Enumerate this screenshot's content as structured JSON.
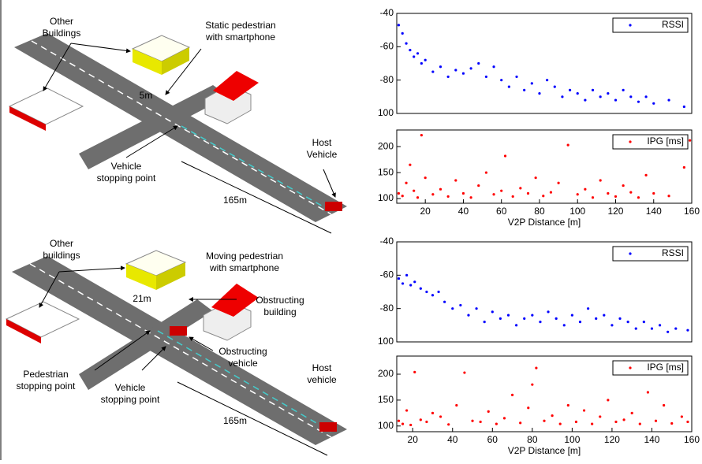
{
  "chart_data": [
    {
      "type": "scatter",
      "xlim": [
        5,
        160
      ],
      "ylim": [
        -100,
        -40
      ],
      "yticks": [
        -40,
        -60,
        -80,
        {
          "value": -100,
          "label": "100"
        }
      ],
      "legend": "top-right",
      "x": [
        6,
        8,
        10,
        12,
        14,
        16,
        18,
        20,
        24,
        28,
        32,
        36,
        40,
        44,
        48,
        52,
        56,
        60,
        64,
        68,
        72,
        76,
        80,
        84,
        88,
        92,
        96,
        100,
        104,
        108,
        112,
        116,
        120,
        124,
        128,
        132,
        136,
        140,
        148,
        156
      ],
      "series": [
        {
          "name": "RSSI",
          "color": "#0000ff",
          "values": [
            -47,
            -52,
            -58,
            -62,
            -66,
            -64,
            -70,
            -68,
            -75,
            -72,
            -78,
            -74,
            -76,
            -73,
            -70,
            -78,
            -72,
            -80,
            -84,
            -78,
            -86,
            -82,
            -88,
            -80,
            -84,
            -90,
            -86,
            -88,
            -92,
            -86,
            -90,
            -88,
            -92,
            -86,
            -90,
            -93,
            -90,
            -94,
            -92,
            -96
          ]
        }
      ]
    },
    {
      "type": "scatter",
      "xlim": [
        5,
        160
      ],
      "ylim": [
        91,
        232
      ],
      "xticks": [
        20,
        40,
        60,
        80,
        100,
        120,
        140,
        160
      ],
      "yticks": [
        100,
        150,
        200
      ],
      "xlabel": "V2P Distance [m]",
      "legend": "top-right",
      "x": [
        6,
        8,
        10,
        12,
        14,
        16,
        18,
        20,
        24,
        28,
        32,
        36,
        40,
        44,
        48,
        52,
        56,
        60,
        62,
        66,
        70,
        74,
        78,
        82,
        86,
        90,
        95,
        100,
        104,
        108,
        112,
        116,
        120,
        124,
        128,
        132,
        136,
        140,
        148,
        156,
        159
      ],
      "series": [
        {
          "name": "IPG [ms]",
          "color": "#ff0000",
          "values": [
            110,
            105,
            130,
            165,
            115,
            102,
            222,
            140,
            108,
            118,
            104,
            135,
            110,
            102,
            125,
            150,
            108,
            115,
            182,
            104,
            120,
            110,
            140,
            105,
            112,
            130,
            203,
            108,
            118,
            102,
            135,
            110,
            104,
            125,
            112,
            102,
            145,
            110,
            105,
            160,
            212
          ]
        }
      ]
    },
    {
      "type": "scatter",
      "xlim": [
        12,
        160
      ],
      "ylim": [
        -100,
        -40
      ],
      "yticks": [
        -40,
        -60,
        -80,
        {
          "value": -100,
          "label": "100"
        }
      ],
      "legend": "top-right",
      "x": [
        13,
        15,
        17,
        19,
        21,
        24,
        27,
        30,
        33,
        36,
        40,
        44,
        48,
        52,
        56,
        60,
        64,
        68,
        72,
        76,
        80,
        84,
        88,
        92,
        96,
        100,
        104,
        108,
        112,
        116,
        120,
        124,
        128,
        132,
        136,
        140,
        144,
        148,
        152,
        158
      ],
      "series": [
        {
          "name": "RSSI",
          "color": "#0000ff",
          "values": [
            -62,
            -65,
            -60,
            -66,
            -64,
            -68,
            -70,
            -72,
            -70,
            -76,
            -80,
            -78,
            -84,
            -80,
            -88,
            -82,
            -86,
            -84,
            -90,
            -86,
            -84,
            -88,
            -82,
            -86,
            -90,
            -84,
            -88,
            -80,
            -86,
            -84,
            -90,
            -86,
            -88,
            -92,
            -88,
            -92,
            -90,
            -94,
            -92,
            -93
          ]
        }
      ]
    },
    {
      "type": "scatter",
      "xlim": [
        12,
        160
      ],
      "ylim": [
        89,
        235
      ],
      "xticks": [
        20,
        40,
        60,
        80,
        100,
        120,
        140,
        160
      ],
      "yticks": [
        100,
        150,
        200
      ],
      "xlabel": "V2P Distance [m]",
      "legend": "top-right",
      "x": [
        13,
        15,
        17,
        19,
        21,
        24,
        27,
        30,
        34,
        38,
        42,
        46,
        50,
        54,
        58,
        62,
        66,
        70,
        74,
        78,
        80,
        82,
        86,
        90,
        94,
        98,
        102,
        106,
        110,
        114,
        118,
        122,
        126,
        130,
        134,
        138,
        142,
        146,
        150,
        155,
        158
      ],
      "series": [
        {
          "name": "IPG [ms]",
          "color": "#ff0000",
          "values": [
            110,
            104,
            130,
            102,
            204,
            112,
            108,
            125,
            118,
            103,
            140,
            203,
            110,
            108,
            128,
            104,
            115,
            160,
            106,
            135,
            180,
            212,
            110,
            120,
            104,
            140,
            108,
            130,
            104,
            118,
            150,
            108,
            112,
            125,
            104,
            165,
            110,
            140,
            105,
            118,
            108
          ]
        }
      ]
    }
  ],
  "diagrams": [
    {
      "labels": [
        [
          "Other",
          "Buildings"
        ],
        [
          "Static pedestrian",
          "with smartphone"
        ],
        [
          "5m"
        ],
        [
          "Vehicle",
          "stopping point"
        ],
        [
          "Host",
          "Vehicle"
        ],
        [
          "165m"
        ]
      ]
    },
    {
      "labels": [
        [
          "Other",
          "buildings"
        ],
        [
          "Moving pedestrian",
          "with smartphone"
        ],
        [
          "21m"
        ],
        [
          "Obstructing",
          "building"
        ],
        [
          "Obstructing",
          "vehicle"
        ],
        [
          "Pedestrian",
          "stopping point"
        ],
        [
          "Vehicle",
          "stopping point"
        ],
        [
          "Host",
          "vehicle"
        ],
        [
          "165m"
        ]
      ]
    }
  ]
}
